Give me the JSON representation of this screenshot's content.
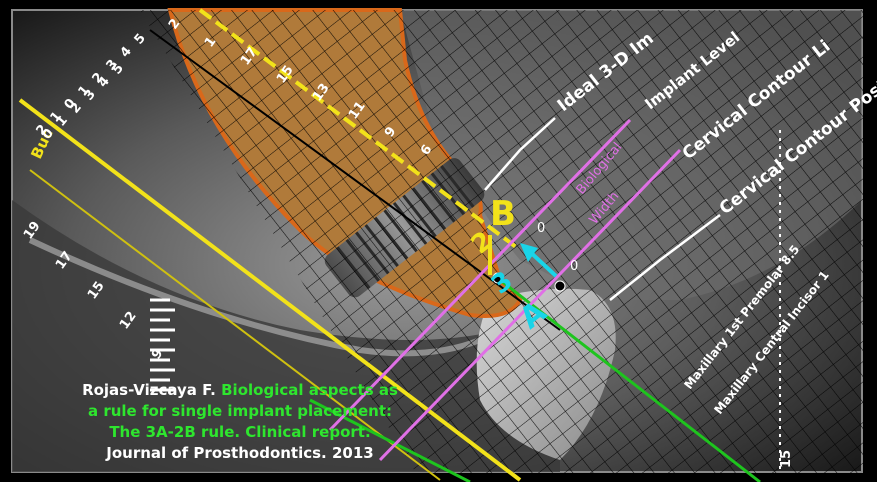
{
  "labels": {
    "ideal": "Ideal 3-D Im",
    "implant_level": "Implant Level",
    "cervical_contour_left": "Cervical Contour Li",
    "cervical_contour_post": "Cervical Contour Post",
    "biological": "Biological",
    "width": "Width",
    "letter_b": "B",
    "num_2": "2",
    "num_3": "3",
    "letter_a": "A",
    "zero_top": "0",
    "zero_bottom": "0",
    "buccal": "Buc",
    "premolar": "Maxillary 1st Premolar 8.5",
    "incisor": "Maxillary Central Incisor 1",
    "fifteen": "15"
  },
  "scale_numbers": {
    "diag_left": [
      "5",
      "4",
      "3",
      "2",
      "1",
      "0",
      "1",
      "2"
    ],
    "diag_right": [
      "0",
      "1",
      "2",
      "3",
      "4",
      "5"
    ],
    "upper_ruler": [
      "2",
      "1",
      "17",
      "15",
      "13",
      "11",
      "9",
      "6"
    ],
    "lower_left": [
      "19",
      "17",
      "15",
      "12",
      "9"
    ]
  },
  "citation": {
    "author": "Rojas-Vizcaya F.",
    "title_1": "Biological aspects as",
    "title_2": "a rule for single implant placement:",
    "title_3": "The 3A-2B rule. Clinical report.",
    "journal": "Journal of Prosthodontics. 2013"
  },
  "colors": {
    "bone": "#b07a3a",
    "bone_outline": "#d9681a",
    "yellow": "#f2e21a",
    "magenta": "#e070e6",
    "cyan": "#19d4e8",
    "green": "#1ec41e",
    "white": "#ffffff"
  }
}
